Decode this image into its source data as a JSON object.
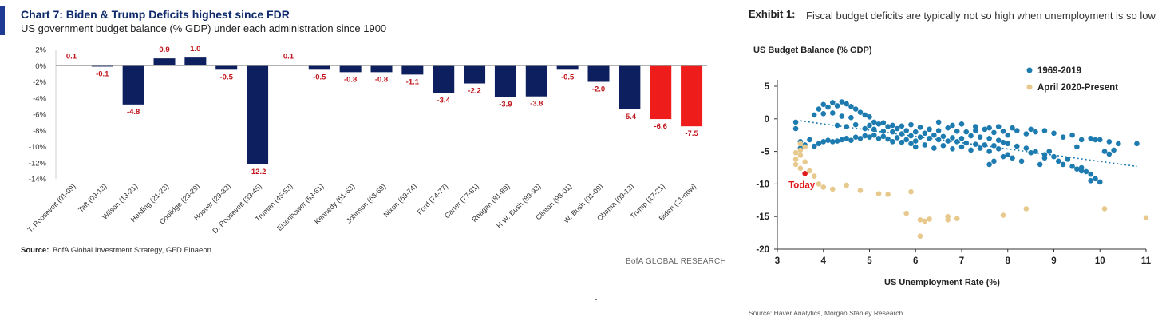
{
  "left_chart": {
    "title": "Chart 7: Biden & Trump Deficits highest since FDR",
    "subtitle": "US government budget balance (% GDP) under each administration since 1900",
    "source_label": "Source:",
    "source_text": "BofA Global Investment Strategy, GFD Finaeon",
    "brand": "BofA GLOBAL RESEARCH"
  },
  "right_chart": {
    "exhibit_label": "Exhibit 1:",
    "title": "Fiscal budget deficits are typically not so high when unemployment is so low",
    "ylabel": "US Budget Balance (% GDP)",
    "xlabel": "US Unemployment Rate (%)",
    "source": "Source: Haver Analytics, Morgan Stanley Research",
    "today_label": "Today"
  },
  "chart_data": [
    {
      "type": "bar",
      "title": "Chart 7: Biden & Trump Deficits highest since FDR",
      "subtitle": "US government budget balance (% GDP) under each administration since 1900",
      "categories": [
        "T. Roosevelt (01-09)",
        "Taft (09-13)",
        "Wilson (13-21)",
        "Harding (21-23)",
        "Coolidge (23-29)",
        "Hoover (29-33)",
        "D. Roosevelt (33-45)",
        "Truman (45-53)",
        "Eisenhower (53-61)",
        "Kennedy (61-63)",
        "Johnson (63-69)",
        "Nixon (69-74)",
        "Ford (74-77)",
        "Carter (77-81)",
        "Reagan (81-89)",
        "H.W. Bush (89-93)",
        "Clinton (93-01)",
        "W. Bush (01-09)",
        "Obama (09-13)",
        "Trump (17-21)",
        "Biden (21-now)"
      ],
      "values": [
        0.1,
        -0.1,
        -4.8,
        0.9,
        1.0,
        -0.5,
        -12.2,
        0.1,
        -0.5,
        -0.8,
        -0.8,
        -1.1,
        -3.4,
        -2.2,
        -3.9,
        -3.8,
        -0.5,
        -2.0,
        -5.4,
        -6.6,
        -7.5
      ],
      "data_labels": [
        "0.1",
        "-0.1",
        "-4.8",
        "0.9",
        "1.0",
        "-0.5",
        "-12.2",
        "0.1",
        "-0.5",
        "-0.8",
        "-0.8",
        "-1.1",
        "-3.4",
        "-2.2",
        "-3.9",
        "-3.8",
        "-0.5",
        "-2.0",
        "-5.4",
        "-6.6",
        "-7.5"
      ],
      "highlight": [
        false,
        false,
        false,
        false,
        false,
        false,
        false,
        false,
        false,
        false,
        false,
        false,
        false,
        false,
        false,
        false,
        false,
        false,
        false,
        true,
        true
      ],
      "ylim": [
        -14,
        2
      ],
      "yticks": [
        "2%",
        "0%",
        "-2%",
        "-4%",
        "-6%",
        "-8%",
        "-10%",
        "-12%",
        "-14%"
      ],
      "colors": {
        "bar": "#0d1f5e",
        "highlight": "#ef1c1c",
        "label": "#c0141b"
      },
      "grid": false
    },
    {
      "type": "scatter",
      "title": "Fiscal budget deficits are typically not so high when unemployment is so low",
      "xlabel": "US Unemployment Rate (%)",
      "ylabel": "US Budget Balance (% GDP)",
      "xlim": [
        3,
        11
      ],
      "ylim": [
        -20,
        5
      ],
      "xticks": [
        "3",
        "4",
        "5",
        "6",
        "7",
        "8",
        "9",
        "10",
        "11"
      ],
      "yticks": [
        "5",
        "0",
        "-5",
        "-10",
        "-15",
        "-20"
      ],
      "legend_position": "top-right",
      "grid": false,
      "series": [
        {
          "name": "1969-2019",
          "color": "#1d7bb0",
          "points": [
            [
              3.4,
              -0.5
            ],
            [
              3.4,
              -1.5
            ],
            [
              3.5,
              -3.5
            ],
            [
              3.5,
              -4.5
            ],
            [
              3.6,
              -4.0
            ],
            [
              3.7,
              -3.2
            ],
            [
              3.8,
              -4.2
            ],
            [
              3.9,
              -3.8
            ],
            [
              4.0,
              -3.5
            ],
            [
              4.1,
              -3.3
            ],
            [
              4.2,
              -3.5
            ],
            [
              4.3,
              -3.4
            ],
            [
              4.4,
              -3.2
            ],
            [
              4.5,
              -3.0
            ],
            [
              4.6,
              -3.3
            ],
            [
              4.7,
              -2.8
            ],
            [
              4.8,
              -3.0
            ],
            [
              4.9,
              -2.6
            ],
            [
              5.0,
              -2.8
            ],
            [
              3.9,
              1.5
            ],
            [
              4.0,
              2.2
            ],
            [
              4.1,
              1.8
            ],
            [
              4.2,
              2.5
            ],
            [
              4.3,
              2.0
            ],
            [
              4.4,
              2.6
            ],
            [
              4.5,
              2.3
            ],
            [
              4.6,
              1.9
            ],
            [
              4.7,
              1.5
            ],
            [
              4.8,
              1.0
            ],
            [
              4.9,
              0.6
            ],
            [
              5.0,
              0.3
            ],
            [
              4.0,
              0.8
            ],
            [
              4.2,
              0.9
            ],
            [
              4.4,
              0.4
            ],
            [
              4.6,
              0.2
            ],
            [
              3.8,
              0.6
            ],
            [
              4.3,
              -1.0
            ],
            [
              4.5,
              -1.2
            ],
            [
              4.7,
              -0.9
            ],
            [
              4.9,
              -1.5
            ],
            [
              5.0,
              -1.0
            ],
            [
              5.1,
              -1.6
            ],
            [
              5.2,
              -0.8
            ],
            [
              5.3,
              -1.9
            ],
            [
              5.4,
              -1.2
            ],
            [
              5.5,
              -2.0
            ],
            [
              5.6,
              -1.5
            ],
            [
              5.7,
              -2.3
            ],
            [
              5.8,
              -1.8
            ],
            [
              5.9,
              -2.6
            ],
            [
              6.0,
              -2.0
            ],
            [
              6.1,
              -2.8
            ],
            [
              6.2,
              -2.2
            ],
            [
              6.3,
              -3.0
            ],
            [
              6.4,
              -2.5
            ],
            [
              6.5,
              -3.2
            ],
            [
              6.6,
              -2.7
            ],
            [
              6.7,
              -3.4
            ],
            [
              6.8,
              -2.9
            ],
            [
              6.9,
              -3.5
            ],
            [
              7.0,
              -3.0
            ],
            [
              7.1,
              -3.7
            ],
            [
              7.2,
              -2.6
            ],
            [
              7.3,
              -3.9
            ],
            [
              7.4,
              -2.8
            ],
            [
              7.5,
              -4.0
            ],
            [
              7.6,
              -3.0
            ],
            [
              7.7,
              -4.1
            ],
            [
              7.8,
              -3.3
            ],
            [
              7.9,
              -3.6
            ],
            [
              5.1,
              -2.5
            ],
            [
              5.2,
              -3.0
            ],
            [
              5.3,
              -2.7
            ],
            [
              5.4,
              -3.1
            ],
            [
              5.5,
              -3.5
            ],
            [
              5.6,
              -2.9
            ],
            [
              5.7,
              -3.6
            ],
            [
              5.8,
              -3.2
            ],
            [
              5.9,
              -3.8
            ],
            [
              6.0,
              -3.4
            ],
            [
              5.1,
              -0.5
            ],
            [
              5.3,
              -0.6
            ],
            [
              5.5,
              -1.0
            ],
            [
              5.7,
              -1.1
            ],
            [
              5.9,
              -0.9
            ],
            [
              6.1,
              -1.3
            ],
            [
              6.3,
              -1.6
            ],
            [
              6.5,
              -1.8
            ],
            [
              6.7,
              -1.4
            ],
            [
              6.9,
              -1.9
            ],
            [
              7.1,
              -2.0
            ],
            [
              7.3,
              -1.8
            ],
            [
              7.5,
              -1.6
            ],
            [
              7.7,
              -2.1
            ],
            [
              7.9,
              -1.9
            ],
            [
              8.0,
              -2.5
            ],
            [
              8.2,
              -1.8
            ],
            [
              8.4,
              -2.3
            ],
            [
              8.6,
              -2.0
            ],
            [
              8.8,
              -1.8
            ],
            [
              9.0,
              -2.2
            ],
            [
              9.2,
              -2.8
            ],
            [
              9.4,
              -2.5
            ],
            [
              9.6,
              -3.2
            ],
            [
              9.8,
              -3.0
            ],
            [
              10.0,
              -3.2
            ],
            [
              10.2,
              -3.5
            ],
            [
              10.4,
              -3.8
            ],
            [
              10.8,
              -3.8
            ],
            [
              10.1,
              -5.0
            ],
            [
              10.2,
              -5.4
            ],
            [
              10.3,
              -4.8
            ],
            [
              8.0,
              -3.8
            ],
            [
              8.2,
              -4.2
            ],
            [
              8.4,
              -4.5
            ],
            [
              8.6,
              -5.0
            ],
            [
              8.8,
              -5.5
            ],
            [
              8.9,
              -5.0
            ],
            [
              9.0,
              -5.8
            ],
            [
              9.1,
              -6.5
            ],
            [
              9.2,
              -7.0
            ],
            [
              9.3,
              -6.2
            ],
            [
              9.4,
              -7.3
            ],
            [
              9.5,
              -7.7
            ],
            [
              9.6,
              -7.5
            ],
            [
              9.7,
              -8.1
            ],
            [
              9.8,
              -8.5
            ],
            [
              9.9,
              -9.2
            ],
            [
              10.0,
              -9.7
            ],
            [
              9.6,
              -8.0
            ],
            [
              9.8,
              -9.5
            ],
            [
              8.0,
              -5.5
            ],
            [
              8.1,
              -6.0
            ],
            [
              8.3,
              -6.5
            ],
            [
              8.5,
              -5.2
            ],
            [
              8.7,
              -7.0
            ],
            [
              8.8,
              -6.0
            ],
            [
              6.0,
              -4.3
            ],
            [
              6.2,
              -4.0
            ],
            [
              6.4,
              -4.5
            ],
            [
              6.6,
              -4.1
            ],
            [
              6.8,
              -4.6
            ],
            [
              7.0,
              -4.3
            ],
            [
              7.2,
              -4.8
            ],
            [
              7.4,
              -4.5
            ],
            [
              7.6,
              -5.0
            ],
            [
              7.8,
              -4.6
            ],
            [
              7.7,
              -6.5
            ],
            [
              7.6,
              -7.0
            ],
            [
              7.9,
              -5.8
            ],
            [
              6.5,
              -0.5
            ],
            [
              6.8,
              -1.0
            ],
            [
              7.0,
              -0.8
            ],
            [
              7.3,
              -1.2
            ],
            [
              7.6,
              -1.4
            ],
            [
              7.8,
              -1.2
            ],
            [
              8.1,
              -1.4
            ],
            [
              8.5,
              -1.6
            ],
            [
              9.5,
              -4.3
            ],
            [
              9.9,
              -3.2
            ]
          ]
        },
        {
          "name": "April 2020-Present",
          "color": "#e8c98d",
          "points": [
            [
              3.5,
              -3.8
            ],
            [
              3.6,
              -4.3
            ],
            [
              3.5,
              -4.8
            ],
            [
              3.4,
              -5.2
            ],
            [
              3.5,
              -5.6
            ],
            [
              3.4,
              -6.2
            ],
            [
              3.4,
              -7.0
            ],
            [
              3.5,
              -7.6
            ],
            [
              3.6,
              -6.6
            ],
            [
              3.7,
              -8.0
            ],
            [
              3.8,
              -8.8
            ],
            [
              3.9,
              -10.0
            ],
            [
              4.0,
              -10.5
            ],
            [
              4.2,
              -10.8
            ],
            [
              4.5,
              -10.2
            ],
            [
              4.8,
              -11.0
            ],
            [
              5.2,
              -11.5
            ],
            [
              5.4,
              -11.6
            ],
            [
              5.9,
              -11.2
            ],
            [
              5.8,
              -14.5
            ],
            [
              6.1,
              -15.5
            ],
            [
              6.2,
              -15.7
            ],
            [
              6.3,
              -15.4
            ],
            [
              6.1,
              -18.0
            ],
            [
              6.7,
              -15.5
            ],
            [
              6.9,
              -15.3
            ],
            [
              6.7,
              -15.0
            ],
            [
              7.9,
              -14.8
            ],
            [
              8.4,
              -13.8
            ],
            [
              10.1,
              -13.8
            ],
            [
              11.0,
              -15.2
            ]
          ]
        }
      ],
      "annotation": {
        "text": "Today",
        "point": [
          3.6,
          -8.4
        ],
        "color": "#e01b1b"
      },
      "trendline": {
        "from": [
          3.5,
          -0.3
        ],
        "to": [
          10.8,
          -7.3
        ],
        "color": "#1d7bb0"
      }
    }
  ]
}
